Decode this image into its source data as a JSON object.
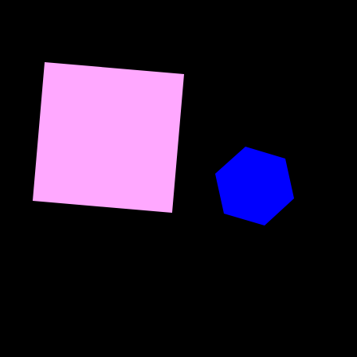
{
  "scene": {
    "background_color": "#000000",
    "shapes": [
      {
        "name": "square",
        "color": "#ffa8ff"
      },
      {
        "name": "hexagon",
        "color": "#0000ff"
      }
    ]
  }
}
